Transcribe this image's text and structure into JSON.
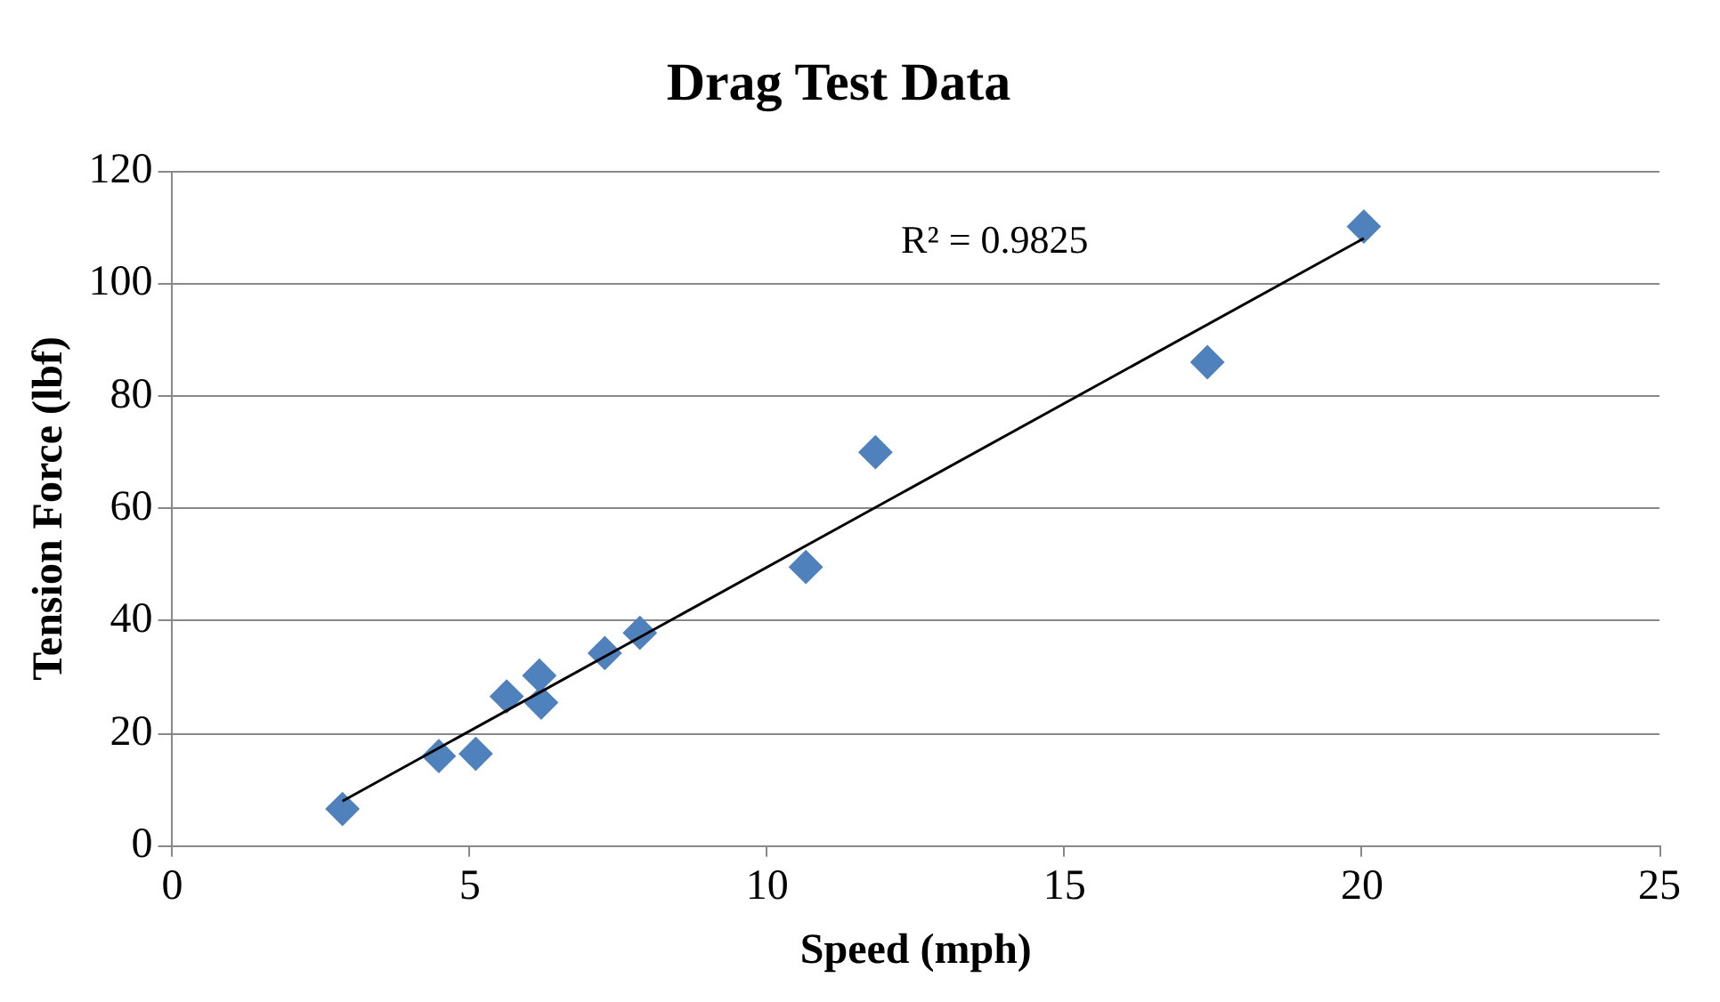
{
  "chart_data": {
    "type": "scatter",
    "title": "Drag Test Data",
    "xlabel": "Speed (mph)",
    "ylabel": "Tension Force (lbf)",
    "xlim": [
      0,
      25
    ],
    "xticks": [
      0,
      5,
      10,
      15,
      20,
      25
    ],
    "ylim": [
      0,
      120
    ],
    "yticks": [
      0,
      20,
      40,
      60,
      80,
      100,
      120
    ],
    "grid": "y",
    "legend": false,
    "marker": "diamond",
    "annotations": [
      "R² = 0.9825"
    ],
    "series": [
      {
        "color": "#4f81bd",
        "x": [
          2.86,
          4.48,
          5.1,
          5.62,
          6.17,
          6.2,
          7.27,
          7.86,
          10.65,
          11.82,
          17.4,
          20.03
        ],
        "values": [
          6.6,
          16,
          16.4,
          26.6,
          30.3,
          25.5,
          34.3,
          37.9,
          49.6,
          70,
          86,
          110.1
        ]
      },
      {
        "type": "line",
        "marker": "none",
        "color": "#000000",
        "x": [
          2.86,
          20.03
        ],
        "values": [
          8,
          108
        ]
      }
    ]
  }
}
